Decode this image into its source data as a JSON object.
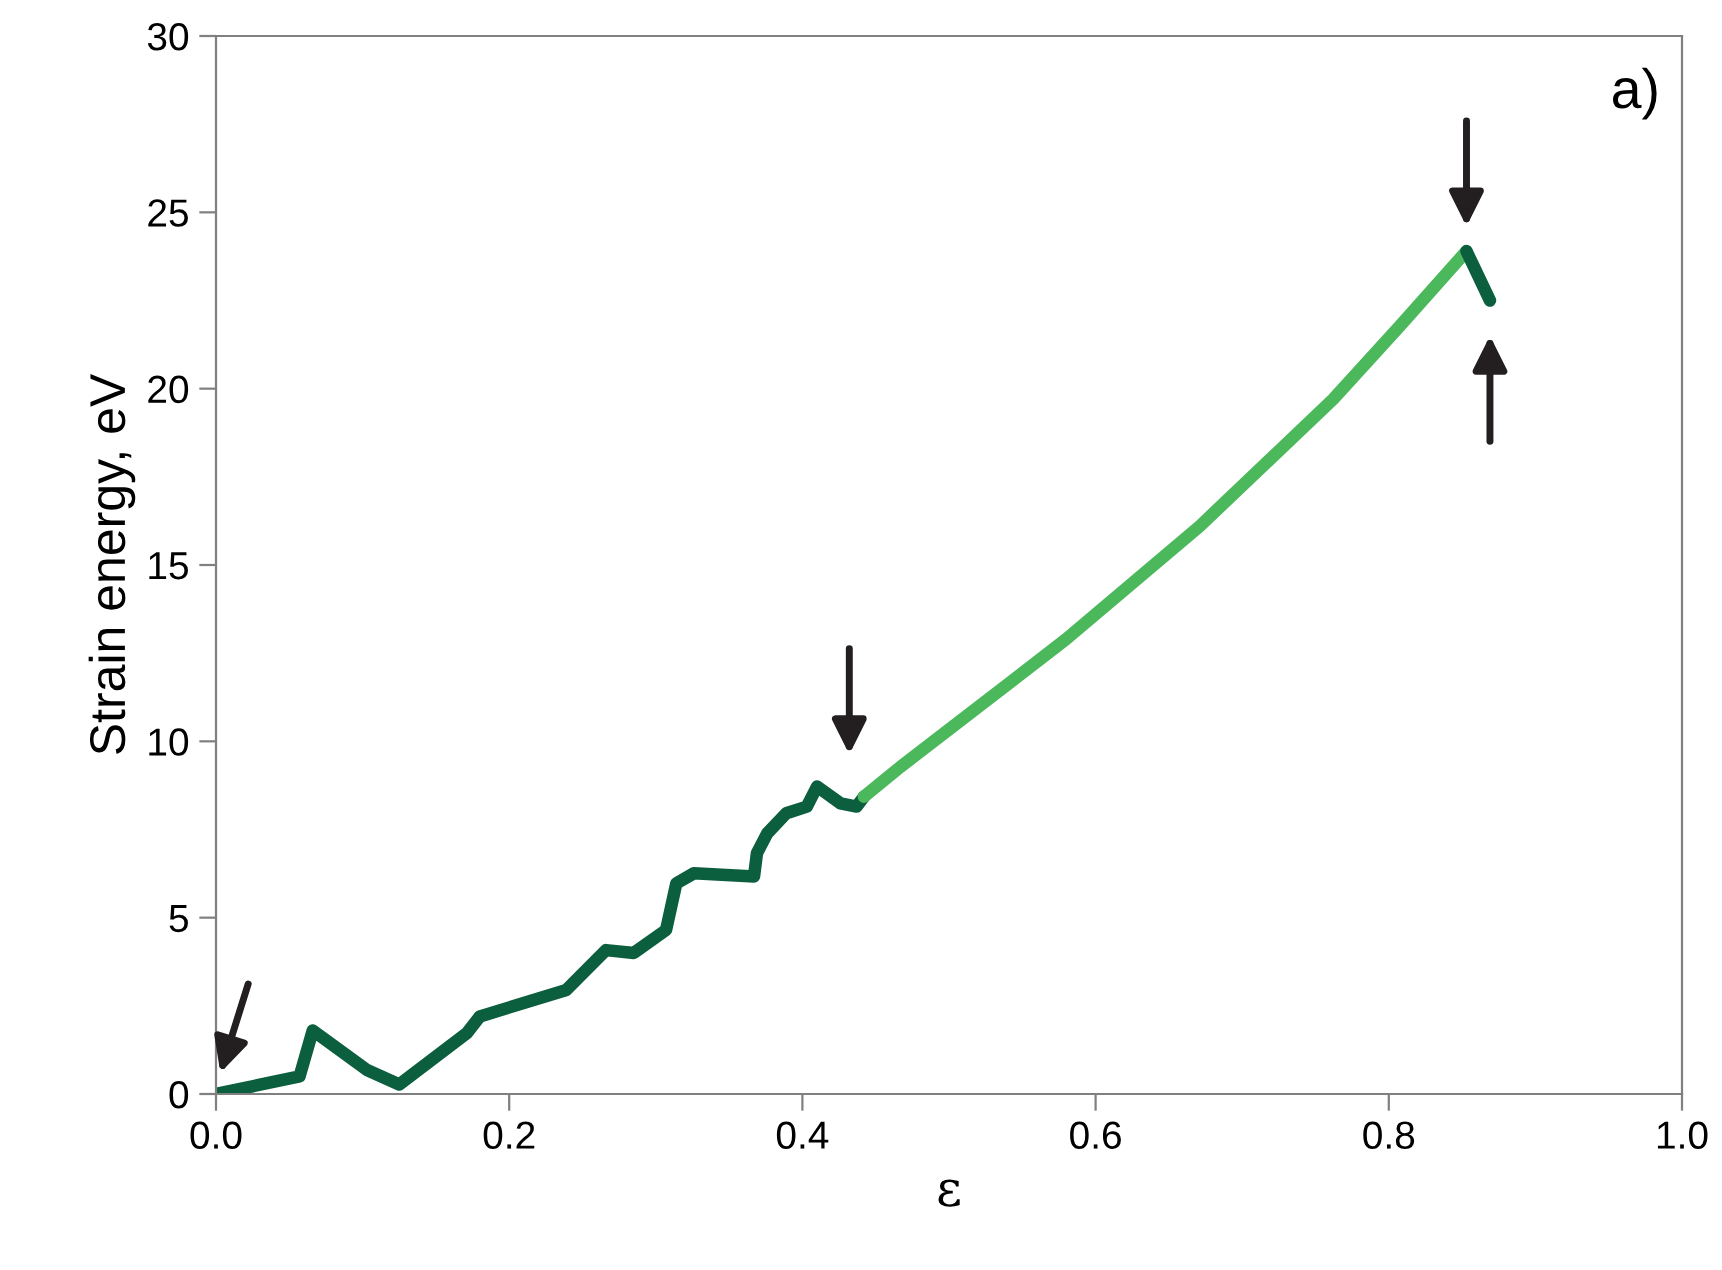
{
  "chart_data": {
    "type": "line",
    "xlabel": "ε",
    "ylabel": "Strain energy, eV",
    "annotations": [
      "a)"
    ],
    "xlim": [
      0,
      1.0
    ],
    "ylim": [
      0,
      30
    ],
    "xticks": [
      {
        "value": 0,
        "label": "0.0"
      },
      0.2,
      0.4,
      0.6,
      0.8,
      {
        "value": 1.0,
        "label": "1.0"
      }
    ],
    "yticks": [
      0,
      5,
      10,
      15,
      20,
      25,
      30
    ],
    "grid": false,
    "legend": false,
    "marker": "none",
    "line_style": "solid",
    "series": [
      {
        "color": "#0b5e3e",
        "x": [
          0,
          0.057,
          0.066,
          0.103,
          0.125,
          0.171,
          0.18,
          0.239,
          0.266,
          0.285,
          0.307,
          0.314,
          0.326,
          0.367,
          0.369,
          0.376,
          0.389,
          0.403,
          0.41,
          0.426,
          0.437,
          0.442
        ],
        "values": [
          0,
          0.5,
          1.8,
          0.68,
          0.27,
          1.72,
          2.2,
          2.95,
          4.08,
          4.0,
          4.65,
          5.97,
          6.26,
          6.17,
          6.83,
          7.39,
          7.96,
          8.15,
          8.72,
          8.24,
          8.15,
          8.43
        ]
      },
      {
        "color": "#4cb85c",
        "x": [
          0.442,
          0.467,
          0.58,
          0.671,
          0.762,
          0.808,
          0.853
        ],
        "values": [
          8.43,
          9.28,
          12.9,
          16.1,
          19.7,
          21.8,
          23.9
        ]
      },
      {
        "color": "#0b5e3e",
        "x": [
          0.853,
          0.869
        ],
        "values": [
          23.9,
          22.5
        ]
      }
    ]
  }
}
